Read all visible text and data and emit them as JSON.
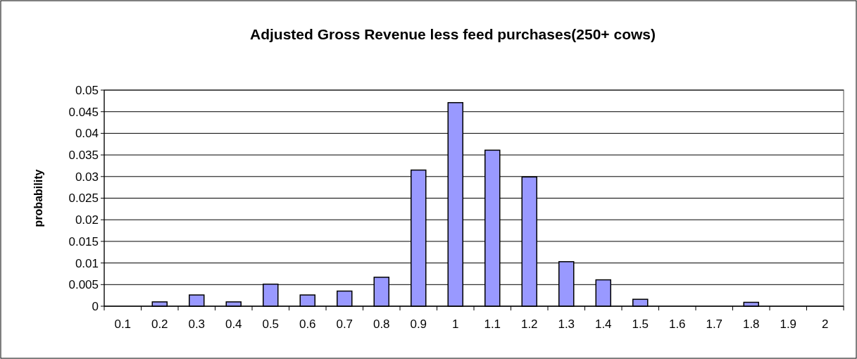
{
  "chart_data": {
    "type": "bar",
    "title": "Adjusted Gross Revenue less feed purchases(250+ cows)",
    "ylabel": "probability",
    "categories": [
      "0.1",
      "0.2",
      "0.3",
      "0.4",
      "0.5",
      "0.6",
      "0.7",
      "0.8",
      "0.9",
      "1",
      "1.1",
      "1.2",
      "1.3",
      "1.4",
      "1.5",
      "1.6",
      "1.7",
      "1.8",
      "1.9",
      "2"
    ],
    "values": [
      0,
      0.001,
      0.0026,
      0.001,
      0.0051,
      0.0026,
      0.0035,
      0.0067,
      0.0315,
      0.0471,
      0.0361,
      0.0299,
      0.0103,
      0.0061,
      0.0016,
      0,
      0,
      0.0009,
      0,
      0
    ],
    "color": "#9999ff",
    "ylim": [
      0,
      0.05
    ],
    "yticks": [
      0,
      0.005,
      0.01,
      0.015,
      0.02,
      0.025,
      0.03,
      0.035,
      0.04,
      0.045,
      0.05
    ],
    "grid": "y"
  }
}
